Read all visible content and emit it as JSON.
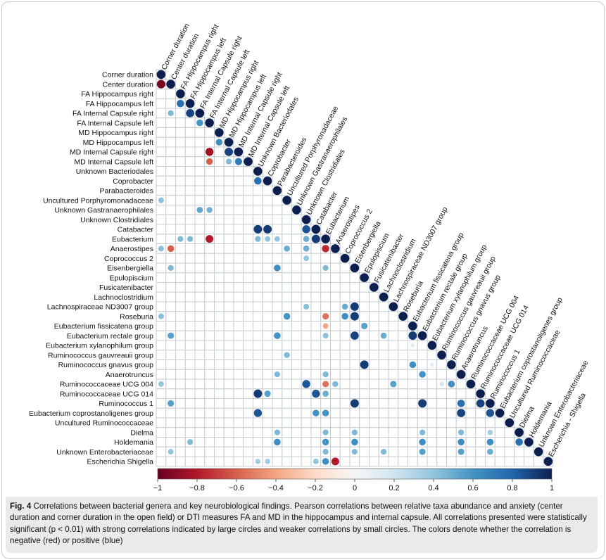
{
  "chart_data": {
    "type": "heatmap",
    "variables": [
      "Corner duration",
      "Center duration",
      "FA Hippocampus right",
      "FA Hippocampus left",
      "FA Internal Capsule right",
      "FA Internal Capsule left",
      "MD Hippocampus right",
      "MD Hippocampus left",
      "MD Internal Capsule right",
      "MD Internal Capsule left",
      "Unknown Bacteriodales",
      "Coprobacter",
      "Parabacteroides",
      "Uncultured Porphyromonadaceae",
      "Unknown Gastranaerophilales",
      "Unknown Clostridiales",
      "Catabacter",
      "Eubacterium",
      "Anaerostipes",
      "Coprococcus 2",
      "Eisenbergiella",
      "Epulopiscium",
      "Fusicatenibacter",
      "Lachnoclostridium",
      "Lachnospiraceae ND3007 group",
      "Roseburia",
      "Eubacterium fissicatena group",
      "Eubacterium rectale group",
      "Eubacterium xylanophilum group",
      "Ruminococcus gauvreauii group",
      "Ruminococcus gnavus group",
      "Anaerotruncus",
      "Ruminococcaceae UCG 004",
      "Ruminococcaceae UCG 014",
      "Ruminococcus 1",
      "Eubacterium coprostanoligenes group",
      "Uncultured Ruminococcaceae",
      "Dielma",
      "Holdemania",
      "Unknown Enterobacteriaceae",
      "Escherichia Shigella"
    ],
    "column_labels": [
      "Corner duration",
      "Center duration",
      "FA Hippocampus right",
      "FA Hippocampus left",
      "FA Internal Capsule right",
      "FA Internal Capsule left",
      "MD Hippocampus right",
      "MD Hippocampus left",
      "MD Internal Capsule right",
      "MD Internal Capsule left",
      "Unknown Bacteriodales",
      "Coprobacter",
      "Parabacteroides",
      "Uncultured Porphyronadaceae",
      "Unknown Gastranaerophilales",
      "Unknown Clostridiales",
      "Catabacter",
      "Eubacterium",
      "Anaerostipes",
      "Coprococcus 2",
      "Eisenbergiella",
      "Epulopiscium",
      "Fusicatenibacter",
      "Lachnoclostridium",
      "Lachnospiraceae ND3007 group",
      "Roseburia",
      "Eubacterium fissicatena group",
      "Eubacterium rectale group",
      "Eubacterium xylanophilum group",
      "Ruminococcus gauvreauii group",
      "Ruminococcus gnavus group",
      "Anaerotruncus",
      "Ruminococcaceae UCG 004",
      "Ruminococcaceae UCG 014",
      "Ruminococcus 1",
      "Eubacterium coprostanoligenes group",
      "Uncultured Ruminococcaceae",
      "Dielma",
      "Holdemania",
      "Unknown Enterobacteriaceae",
      "Escherichia - Shigella"
    ],
    "cells": [
      {
        "row": 0,
        "col": 0,
        "value": 1.0
      },
      {
        "row": 1,
        "col": 1,
        "value": 1.0
      },
      {
        "row": 2,
        "col": 2,
        "value": 1.0
      },
      {
        "row": 3,
        "col": 3,
        "value": 1.0
      },
      {
        "row": 4,
        "col": 4,
        "value": 1.0
      },
      {
        "row": 5,
        "col": 5,
        "value": 1.0
      },
      {
        "row": 6,
        "col": 6,
        "value": 1.0
      },
      {
        "row": 7,
        "col": 7,
        "value": 1.0
      },
      {
        "row": 8,
        "col": 8,
        "value": 1.0
      },
      {
        "row": 9,
        "col": 9,
        "value": 1.0
      },
      {
        "row": 10,
        "col": 10,
        "value": 1.0
      },
      {
        "row": 11,
        "col": 11,
        "value": 1.0
      },
      {
        "row": 12,
        "col": 12,
        "value": 1.0
      },
      {
        "row": 13,
        "col": 13,
        "value": 1.0
      },
      {
        "row": 14,
        "col": 14,
        "value": 1.0
      },
      {
        "row": 15,
        "col": 15,
        "value": 1.0
      },
      {
        "row": 16,
        "col": 16,
        "value": 1.0
      },
      {
        "row": 17,
        "col": 17,
        "value": 1.0
      },
      {
        "row": 18,
        "col": 18,
        "value": 1.0
      },
      {
        "row": 19,
        "col": 19,
        "value": 1.0
      },
      {
        "row": 20,
        "col": 20,
        "value": 1.0
      },
      {
        "row": 21,
        "col": 21,
        "value": 1.0
      },
      {
        "row": 22,
        "col": 22,
        "value": 1.0
      },
      {
        "row": 23,
        "col": 23,
        "value": 1.0
      },
      {
        "row": 24,
        "col": 24,
        "value": 1.0
      },
      {
        "row": 25,
        "col": 25,
        "value": 1.0
      },
      {
        "row": 26,
        "col": 26,
        "value": 1.0
      },
      {
        "row": 27,
        "col": 27,
        "value": 1.0
      },
      {
        "row": 28,
        "col": 28,
        "value": 1.0
      },
      {
        "row": 29,
        "col": 29,
        "value": 1.0
      },
      {
        "row": 30,
        "col": 30,
        "value": 1.0
      },
      {
        "row": 31,
        "col": 31,
        "value": 1.0
      },
      {
        "row": 32,
        "col": 32,
        "value": 1.0
      },
      {
        "row": 33,
        "col": 33,
        "value": 1.0
      },
      {
        "row": 34,
        "col": 34,
        "value": 1.0
      },
      {
        "row": 35,
        "col": 35,
        "value": 1.0
      },
      {
        "row": 36,
        "col": 36,
        "value": 1.0
      },
      {
        "row": 37,
        "col": 37,
        "value": 1.0
      },
      {
        "row": 38,
        "col": 38,
        "value": 1.0
      },
      {
        "row": 39,
        "col": 39,
        "value": 1.0
      },
      {
        "row": 40,
        "col": 40,
        "value": 1.0
      },
      {
        "row": 1,
        "col": 0,
        "value": -0.95
      },
      {
        "row": 3,
        "col": 2,
        "value": 0.75
      },
      {
        "row": 4,
        "col": 1,
        "value": 0.45
      },
      {
        "row": 4,
        "col": 3,
        "value": 0.9
      },
      {
        "row": 5,
        "col": 4,
        "value": 0.6
      },
      {
        "row": 7,
        "col": 6,
        "value": 0.62
      },
      {
        "row": 8,
        "col": 5,
        "value": -0.85
      },
      {
        "row": 8,
        "col": 7,
        "value": 0.9
      },
      {
        "row": 9,
        "col": 5,
        "value": -0.6
      },
      {
        "row": 9,
        "col": 7,
        "value": 0.45
      },
      {
        "row": 9,
        "col": 8,
        "value": 0.7
      },
      {
        "row": 11,
        "col": 10,
        "value": 0.75
      },
      {
        "row": 13,
        "col": 0,
        "value": 0.42
      },
      {
        "row": 14,
        "col": 4,
        "value": 0.52
      },
      {
        "row": 14,
        "col": 5,
        "value": 0.48
      },
      {
        "row": 16,
        "col": 10,
        "value": 0.92
      },
      {
        "row": 16,
        "col": 11,
        "value": 0.92
      },
      {
        "row": 16,
        "col": 15,
        "value": 0.85
      },
      {
        "row": 17,
        "col": 2,
        "value": 0.45
      },
      {
        "row": 17,
        "col": 3,
        "value": 0.45
      },
      {
        "row": 17,
        "col": 5,
        "value": -0.8
      },
      {
        "row": 17,
        "col": 10,
        "value": 0.45
      },
      {
        "row": 17,
        "col": 11,
        "value": 0.4
      },
      {
        "row": 17,
        "col": 12,
        "value": 0.4
      },
      {
        "row": 17,
        "col": 15,
        "value": 0.5
      },
      {
        "row": 17,
        "col": 16,
        "value": 0.92
      },
      {
        "row": 18,
        "col": 0,
        "value": 0.42
      },
      {
        "row": 18,
        "col": 1,
        "value": -0.6
      },
      {
        "row": 18,
        "col": 13,
        "value": 0.5
      },
      {
        "row": 18,
        "col": 15,
        "value": 0.5
      },
      {
        "row": 18,
        "col": 17,
        "value": -0.75
      },
      {
        "row": 19,
        "col": 15,
        "value": 0.4
      },
      {
        "row": 20,
        "col": 1,
        "value": 0.45
      },
      {
        "row": 20,
        "col": 12,
        "value": 0.62
      },
      {
        "row": 20,
        "col": 17,
        "value": 0.45
      },
      {
        "row": 24,
        "col": 15,
        "value": 0.42
      },
      {
        "row": 24,
        "col": 19,
        "value": 0.5
      },
      {
        "row": 24,
        "col": 20,
        "value": 0.92
      },
      {
        "row": 25,
        "col": 0,
        "value": 0.42
      },
      {
        "row": 25,
        "col": 13,
        "value": 0.6
      },
      {
        "row": 25,
        "col": 17,
        "value": -0.55
      },
      {
        "row": 25,
        "col": 19,
        "value": 0.62
      },
      {
        "row": 25,
        "col": 20,
        "value": 0.92
      },
      {
        "row": 26,
        "col": 17,
        "value": -0.4
      },
      {
        "row": 26,
        "col": 21,
        "value": 0.55
      },
      {
        "row": 27,
        "col": 1,
        "value": 0.55
      },
      {
        "row": 27,
        "col": 12,
        "value": 0.6
      },
      {
        "row": 27,
        "col": 17,
        "value": 0.42
      },
      {
        "row": 27,
        "col": 20,
        "value": 0.9
      },
      {
        "row": 27,
        "col": 23,
        "value": 0.5
      },
      {
        "row": 27,
        "col": 26,
        "value": 0.92
      },
      {
        "row": 28,
        "col": 26,
        "value": 0.12
      },
      {
        "row": 29,
        "col": 13,
        "value": 0.45
      },
      {
        "row": 30,
        "col": 21,
        "value": 0.92
      },
      {
        "row": 30,
        "col": 26,
        "value": 0.62
      },
      {
        "row": 30,
        "col": 28,
        "value": 0.12
      },
      {
        "row": 31,
        "col": 12,
        "value": 0.45
      },
      {
        "row": 31,
        "col": 17,
        "value": 0.45
      },
      {
        "row": 31,
        "col": 27,
        "value": 0.6
      },
      {
        "row": 32,
        "col": 0,
        "value": 0.4
      },
      {
        "row": 32,
        "col": 15,
        "value": 0.85
      },
      {
        "row": 32,
        "col": 17,
        "value": -0.55
      },
      {
        "row": 32,
        "col": 18,
        "value": 0.45
      },
      {
        "row": 32,
        "col": 24,
        "value": 0.55
      },
      {
        "row": 32,
        "col": 29,
        "value": 0.2
      },
      {
        "row": 32,
        "col": 30,
        "value": 0.62
      },
      {
        "row": 33,
        "col": 10,
        "value": 0.92
      },
      {
        "row": 33,
        "col": 11,
        "value": 0.55
      },
      {
        "row": 33,
        "col": 16,
        "value": 0.85
      },
      {
        "row": 33,
        "col": 17,
        "value": 0.5
      },
      {
        "row": 34,
        "col": 1,
        "value": 0.55
      },
      {
        "row": 34,
        "col": 20,
        "value": 0.92
      },
      {
        "row": 34,
        "col": 27,
        "value": 0.92
      },
      {
        "row": 34,
        "col": 31,
        "value": 0.75
      },
      {
        "row": 34,
        "col": 33,
        "value": 0.9
      },
      {
        "row": 35,
        "col": 10,
        "value": 0.85
      },
      {
        "row": 35,
        "col": 16,
        "value": 0.6
      },
      {
        "row": 35,
        "col": 17,
        "value": 0.6
      },
      {
        "row": 35,
        "col": 31,
        "value": 0.9
      },
      {
        "row": 35,
        "col": 34,
        "value": 0.85
      },
      {
        "row": 37,
        "col": 12,
        "value": 0.45
      },
      {
        "row": 37,
        "col": 17,
        "value": 0.45
      },
      {
        "row": 37,
        "col": 20,
        "value": 0.45
      },
      {
        "row": 37,
        "col": 27,
        "value": 0.45
      },
      {
        "row": 37,
        "col": 31,
        "value": 0.45
      },
      {
        "row": 37,
        "col": 34,
        "value": 0.35
      },
      {
        "row": 38,
        "col": 3,
        "value": 0.45
      },
      {
        "row": 38,
        "col": 12,
        "value": 0.62
      },
      {
        "row": 38,
        "col": 17,
        "value": 0.6
      },
      {
        "row": 38,
        "col": 20,
        "value": 0.62
      },
      {
        "row": 38,
        "col": 27,
        "value": 0.62
      },
      {
        "row": 38,
        "col": 31,
        "value": 0.62
      },
      {
        "row": 38,
        "col": 34,
        "value": 0.62
      },
      {
        "row": 38,
        "col": 37,
        "value": 0.75
      },
      {
        "row": 39,
        "col": 1,
        "value": 0.4
      },
      {
        "row": 39,
        "col": 17,
        "value": 0.45
      },
      {
        "row": 39,
        "col": 20,
        "value": 0.45
      },
      {
        "row": 39,
        "col": 23,
        "value": 0.45
      },
      {
        "row": 39,
        "col": 27,
        "value": 0.55
      },
      {
        "row": 39,
        "col": 31,
        "value": 0.55
      },
      {
        "row": 39,
        "col": 34,
        "value": 0.5
      },
      {
        "row": 40,
        "col": 10,
        "value": 0.35
      },
      {
        "row": 40,
        "col": 11,
        "value": 0.35
      },
      {
        "row": 40,
        "col": 16,
        "value": 0.4
      },
      {
        "row": 40,
        "col": 17,
        "value": 0.62
      },
      {
        "row": 40,
        "col": 18,
        "value": -0.8
      }
    ],
    "color_scale": {
      "min": -1,
      "max": 1,
      "ticks": [
        "−1",
        "−0.8",
        "−0.6",
        "−0.4",
        "−0.2",
        "0",
        "0.2",
        "0.4",
        "0.6",
        "0.8",
        "1"
      ],
      "tick_values": [
        -1,
        -0.8,
        -0.6,
        -0.4,
        -0.2,
        0,
        0.2,
        0.4,
        0.6,
        0.8,
        1
      ],
      "stops": [
        "#67001f",
        "#b2182b",
        "#d6604d",
        "#f4a582",
        "#fddbc7",
        "#f7f7f7",
        "#d1e5f0",
        "#92c5de",
        "#4393c3",
        "#2166ac",
        "#0c1f4f"
      ]
    },
    "legend": "bottom"
  },
  "caption": {
    "label": "Fig. 4",
    "text": "Correlations between bacterial genera and key neurobiological findings. Pearson correlations between relative taxa abundance and anxiety (center duration and corner duration in the open field) or DTI measures FA and MD in the hippocampus and internal capsule. All correlations presented were statistically significant (p < 0.01) with strong correlations indicated by large circles and weaker correlations by small circles. The colors denote whether the correlation is negative (red) or positive (blue)"
  }
}
